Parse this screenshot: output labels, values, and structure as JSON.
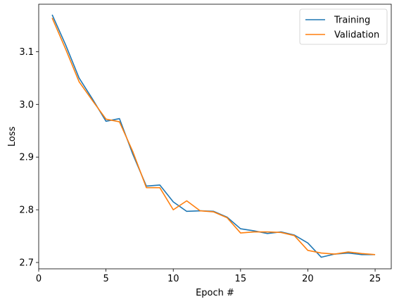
{
  "chart_data": {
    "type": "line",
    "title": "",
    "xlabel": "Epoch #",
    "ylabel": "Loss",
    "xlim": [
      0,
      26.2
    ],
    "ylim": [
      2.688,
      3.19
    ],
    "xticks": [
      0,
      5,
      10,
      15,
      20,
      25
    ],
    "yticks": [
      2.7,
      2.8,
      2.9,
      3.0,
      3.1
    ],
    "xtick_labels": [
      "0",
      "5",
      "10",
      "15",
      "20",
      "25"
    ],
    "ytick_labels": [
      "2.7",
      "2.8",
      "2.9",
      "3.0",
      "3.1"
    ],
    "grid": false,
    "legend": "top-right",
    "x": [
      1,
      2,
      3,
      4,
      5,
      6,
      7,
      8,
      9,
      10,
      11,
      12,
      13,
      14,
      15,
      16,
      17,
      18,
      19,
      20,
      21,
      22,
      23,
      24,
      25
    ],
    "series": [
      {
        "name": "Training",
        "color": "#1f77b4",
        "values": [
          3.17,
          3.113,
          3.05,
          3.01,
          2.968,
          2.973,
          2.905,
          2.845,
          2.847,
          2.815,
          2.797,
          2.798,
          2.797,
          2.786,
          2.764,
          2.76,
          2.755,
          2.758,
          2.752,
          2.737,
          2.71,
          2.716,
          2.718,
          2.715,
          2.715
        ]
      },
      {
        "name": "Validation",
        "color": "#ff7f0e",
        "values": [
          3.164,
          3.105,
          3.043,
          3.007,
          2.972,
          2.967,
          2.91,
          2.842,
          2.842,
          2.8,
          2.817,
          2.798,
          2.796,
          2.785,
          2.756,
          2.758,
          2.758,
          2.757,
          2.751,
          2.723,
          2.718,
          2.716,
          2.72,
          2.717,
          2.715
        ]
      }
    ]
  }
}
